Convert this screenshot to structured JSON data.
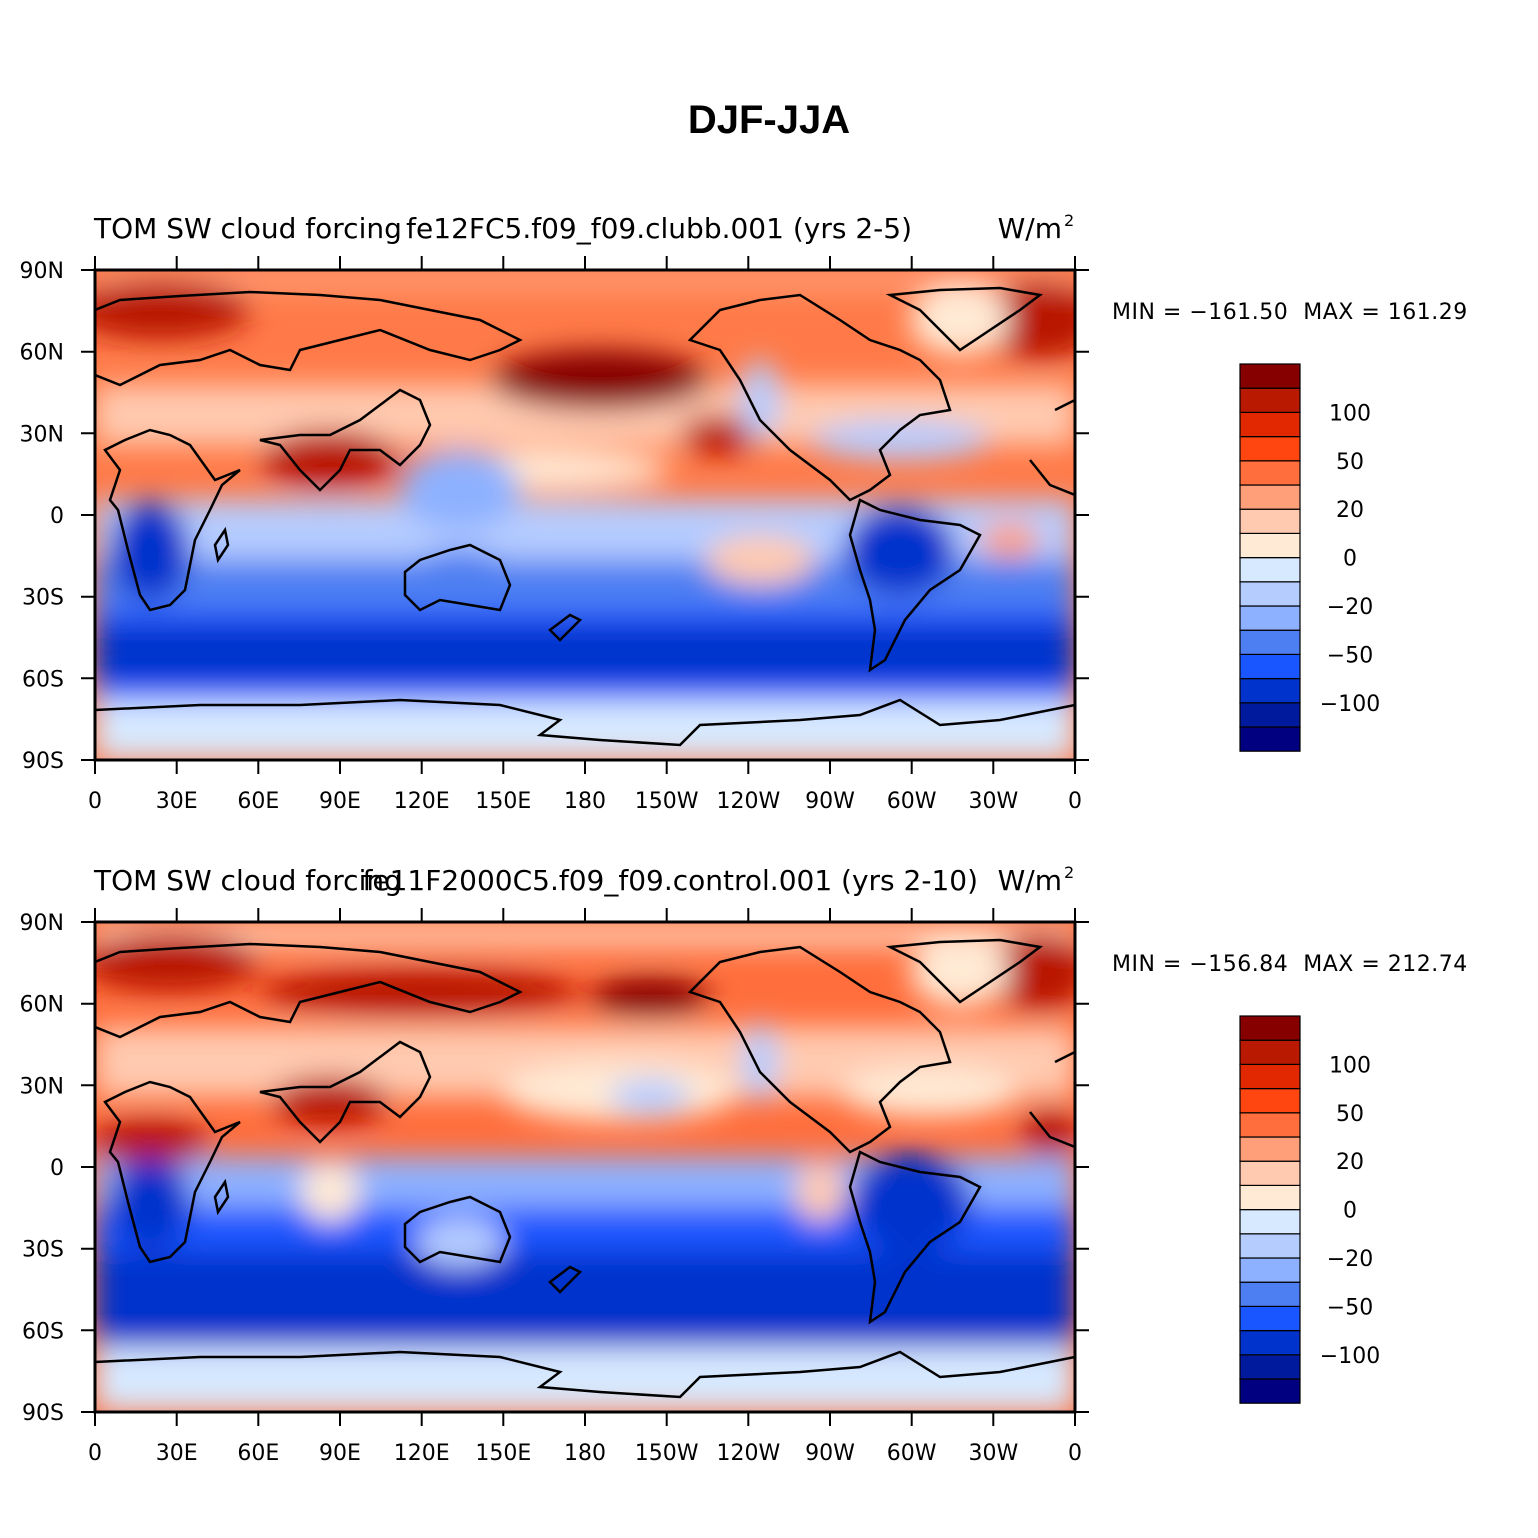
{
  "title": "DJF-JJA",
  "panels": [
    {
      "variable": "TOM SW cloud forcing",
      "case": "fe12FC5.f09_f09.clubb.001 (yrs 2-5)",
      "units_base": "W/m",
      "units_exp": "2",
      "min_label": "MIN = −161.50",
      "max_label": "MAX = 161.29",
      "stats": "MIN = −161.50  MAX = 161.29"
    },
    {
      "variable": "TOM SW cloud forcing",
      "case": "fe11F2000C5.f09_f09.control.001 (yrs 2-10)",
      "units_base": "W/m",
      "units_exp": "2",
      "min_label": "MIN = −156.84",
      "max_label": "MAX = 212.74",
      "stats": "MIN = −156.84  MAX = 212.74"
    }
  ],
  "lon_labels": [
    "0",
    "30E",
    "60E",
    "90E",
    "120E",
    "150E",
    "180",
    "150W",
    "120W",
    "90W",
    "60W",
    "30W",
    "0"
  ],
  "lat_labels": [
    "90N",
    "60N",
    "30N",
    "0",
    "30S",
    "60S",
    "90S"
  ],
  "legend": {
    "colors": [
      "#000080",
      "#001a9e",
      "#0033cc",
      "#1a56ff",
      "#4d7ff2",
      "#8eb1ff",
      "#b5ccff",
      "#d7e9ff",
      "#ffead5",
      "#ffcab0",
      "#ff9f7a",
      "#ff6e3c",
      "#ff4510",
      "#e22800",
      "#b91900",
      "#870000"
    ],
    "labels": [
      "100",
      "50",
      "20",
      "0",
      "−20",
      "−50",
      "−100"
    ]
  },
  "chart_data": [
    {
      "type": "contour-map",
      "title": "DJF-JJA",
      "subtitle": "TOM SW cloud forcing — fe12FC5.f09_f09.clubb.001 (yrs 2-5)",
      "units": "W/m2",
      "min": -161.5,
      "max": 161.29,
      "lon_range": [
        0,
        360
      ],
      "lat_range": [
        -90,
        90
      ],
      "contour_levels": [
        -140,
        -120,
        -100,
        -80,
        -50,
        -35,
        -20,
        -10,
        0,
        10,
        20,
        35,
        50,
        80,
        100,
        120,
        140
      ]
    },
    {
      "type": "contour-map",
      "title": "DJF-JJA",
      "subtitle": "TOM SW cloud forcing — fe11F2000C5.f09_f09.control.001 (yrs 2-10)",
      "units": "W/m2",
      "min": -156.84,
      "max": 212.74,
      "lon_range": [
        0,
        360
      ],
      "lat_range": [
        -90,
        90
      ],
      "contour_levels": [
        -140,
        -120,
        -100,
        -80,
        -50,
        -35,
        -20,
        -10,
        0,
        10,
        20,
        35,
        50,
        80,
        100,
        120,
        140
      ]
    }
  ]
}
